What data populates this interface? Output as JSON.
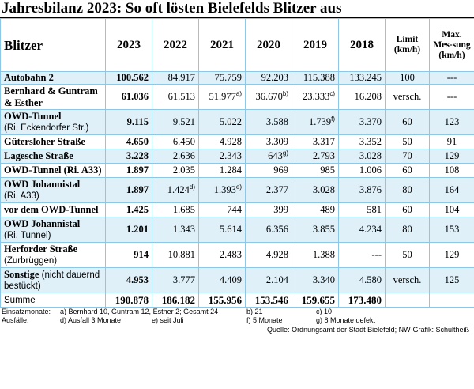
{
  "title": "Jahresbilanz 2023: So oft lösten Bielefelds Blitzer aus",
  "headers": [
    "Blitzer",
    "2023",
    "2022",
    "2021",
    "2020",
    "2019",
    "2018",
    "Limit (km/h)",
    "Max. Mes-sung (km/h)"
  ],
  "rows": [
    {
      "name1": "Autobahn 2",
      "name2": "",
      "v2023": "100.562",
      "v2022": "84.917",
      "v2021": "75.759",
      "v2020": "92.203",
      "v2019": "115.388",
      "v2018": "133.245",
      "limit": "100",
      "max": "---",
      "f2022": "",
      "f2021": "",
      "f2020": "",
      "f2019": ""
    },
    {
      "name1": "Bernhard & Guntram",
      "name2": "& Esther",
      "v2023": "61.036",
      "v2022": "61.513",
      "v2021": "51.977",
      "v2020": "36.670",
      "v2019": "23.333",
      "v2018": "16.208",
      "limit": "versch.",
      "max": "---",
      "f2022": "",
      "f2021": "a)",
      "f2020": "b)",
      "f2019": "c)"
    },
    {
      "name1": "OWD-Tunnel",
      "name2": "(Ri. Eckendorfer Str.)",
      "v2023": "9.115",
      "v2022": "9.521",
      "v2021": "5.022",
      "v2020": "3.588",
      "v2019": "1.739",
      "v2018": "3.370",
      "limit": "60",
      "max": "123",
      "f2022": "",
      "f2021": "",
      "f2020": "",
      "f2019": "f)"
    },
    {
      "name1": "Gütersloher Straße",
      "name2": "",
      "v2023": "4.650",
      "v2022": "6.450",
      "v2021": "4.928",
      "v2020": "3.309",
      "v2019": "3.317",
      "v2018": "3.352",
      "limit": "50",
      "max": "91",
      "f2022": "",
      "f2021": "",
      "f2020": "",
      "f2019": ""
    },
    {
      "name1": "Lagesche Straße",
      "name2": "",
      "v2023": "3.228",
      "v2022": "2.636",
      "v2021": "2.343",
      "v2020": "643",
      "v2019": "2.793",
      "v2018": "3.028",
      "limit": "70",
      "max": "129",
      "f2022": "",
      "f2021": "",
      "f2020": "g)",
      "f2019": ""
    },
    {
      "name1": "OWD-Tunnel (Ri. A33)",
      "name2": "",
      "v2023": "1.897",
      "v2022": "2.035",
      "v2021": "1.284",
      "v2020": "969",
      "v2019": "985",
      "v2018": "1.006",
      "limit": "60",
      "max": "108",
      "f2022": "",
      "f2021": "",
      "f2020": "",
      "f2019": ""
    },
    {
      "name1": "OWD Johannistal",
      "name2": "(Ri. A33)",
      "v2023": "1.897",
      "v2022": "1.424",
      "v2021": "1.393",
      "v2020": "2.377",
      "v2019": "3.028",
      "v2018": "3.876",
      "limit": "80",
      "max": "164",
      "f2022": "d)",
      "f2021": "e)",
      "f2020": "",
      "f2019": ""
    },
    {
      "name1": "vor dem OWD-Tunnel",
      "name2": "",
      "v2023": "1.425",
      "v2022": "1.685",
      "v2021": "744",
      "v2020": "399",
      "v2019": "489",
      "v2018": "581",
      "limit": "60",
      "max": "104",
      "f2022": "",
      "f2021": "",
      "f2020": "",
      "f2019": ""
    },
    {
      "name1": "OWD Johannistal",
      "name2": "(Ri. Tunnel)",
      "v2023": "1.201",
      "v2022": "1.343",
      "v2021": "5.614",
      "v2020": "6.356",
      "v2019": "3.855",
      "v2018": "4.234",
      "limit": "80",
      "max": "153",
      "f2022": "",
      "f2021": "",
      "f2020": "",
      "f2019": ""
    },
    {
      "name1": "Herforder Straße",
      "name2": "(Zurbrüggen)",
      "v2023": "914",
      "v2022": "10.881",
      "v2021": "2.483",
      "v2020": "4.928",
      "v2019": "1.388",
      "v2018": "---",
      "limit": "50",
      "max": "129",
      "f2022": "",
      "f2021": "",
      "f2020": "",
      "f2019": ""
    },
    {
      "name1": "Sonstige",
      "name1b": " (nicht dauernd",
      "name2": "bestückt)",
      "v2023": "4.953",
      "v2022": "3.777",
      "v2021": "4.409",
      "v2020": "2.104",
      "v2019": "3.340",
      "v2018": "4.580",
      "limit": "versch.",
      "max": "125",
      "f2022": "",
      "f2021": "",
      "f2020": "",
      "f2019": ""
    }
  ],
  "sum": {
    "label": "Summe",
    "v2023": "190.878",
    "v2022": "186.182",
    "v2021": "155.956",
    "v2020": "153.546",
    "v2019": "159.655",
    "v2018": "173.480"
  },
  "notes": {
    "einsatz_label": "Einsatzmonate:",
    "a": "a) Bernhard 10, Guntram 12, Esther 2; Gesamt 24",
    "b": "b) 21",
    "c": "c) 10",
    "ausfall_label": "Ausfälle:",
    "d": "d) Ausfall 3 Monate",
    "e": "e) seit Juli",
    "f": "f) 5 Monate",
    "g": "g) 8 Monate defekt"
  },
  "source": "Quelle: Ordnungsamt der Stadt Bielefeld; NW-Grafik: Schultheiß",
  "colors": {
    "accent_border": "#8cc8e6",
    "stripe": "#dff0f9",
    "footnote_text": "#1a1a1a"
  }
}
